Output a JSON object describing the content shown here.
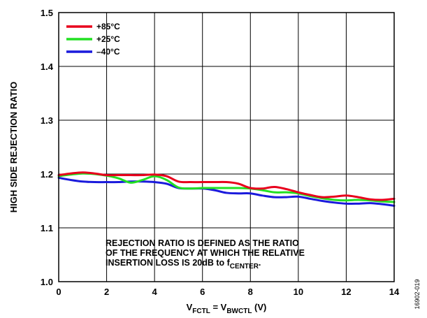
{
  "chart_data": {
    "type": "line",
    "xlabel": {
      "parts": [
        {
          "text": "V",
          "sub": false
        },
        {
          "text": "FCTL",
          "sub": true
        },
        {
          "text": " = V",
          "sub": false
        },
        {
          "text": "BWCTL",
          "sub": true
        },
        {
          "text": " (V)",
          "sub": false
        }
      ]
    },
    "ylabel": "HIGH SIDE REJECTION RATIO",
    "xlim": [
      0,
      14
    ],
    "ylim": [
      1.0,
      1.5
    ],
    "xticks": [
      0,
      2,
      4,
      6,
      8,
      10,
      12,
      14
    ],
    "yticks": [
      1.0,
      1.1,
      1.2,
      1.3,
      1.4,
      1.5
    ],
    "x_tick_labels": [
      "0",
      "2",
      "4",
      "6",
      "8",
      "10",
      "12",
      "14"
    ],
    "y_tick_labels": [
      "1.0",
      "1.1",
      "1.2",
      "1.3",
      "1.4",
      "1.5"
    ],
    "grid": true,
    "legend_position": "top-left",
    "series": [
      {
        "name": "+85°C",
        "color": "#e8001c",
        "x": [
          0,
          0.5,
          1,
          1.5,
          2,
          2.5,
          3,
          3.5,
          4,
          4.5,
          5,
          5.5,
          6,
          6.5,
          7,
          7.5,
          8,
          8.5,
          9,
          9.5,
          10,
          10.5,
          11,
          11.5,
          12,
          12.5,
          13,
          13.5,
          14
        ],
        "y": [
          1.198,
          1.201,
          1.203,
          1.201,
          1.198,
          1.198,
          1.198,
          1.198,
          1.199,
          1.196,
          1.186,
          1.185,
          1.185,
          1.185,
          1.185,
          1.182,
          1.174,
          1.173,
          1.176,
          1.172,
          1.166,
          1.161,
          1.157,
          1.158,
          1.16,
          1.157,
          1.153,
          1.152,
          1.154
        ]
      },
      {
        "name": "+25°C",
        "color": "#22e022",
        "x": [
          0,
          0.5,
          1,
          1.5,
          2,
          2.5,
          3,
          3.5,
          4,
          4.5,
          5,
          5.5,
          6,
          6.5,
          7,
          7.5,
          8,
          8.5,
          9,
          9.5,
          10,
          10.5,
          11,
          11.5,
          12,
          12.5,
          13,
          13.5,
          14
        ],
        "y": [
          1.196,
          1.199,
          1.201,
          1.2,
          1.197,
          1.192,
          1.184,
          1.189,
          1.196,
          1.189,
          1.175,
          1.173,
          1.174,
          1.174,
          1.174,
          1.174,
          1.173,
          1.17,
          1.166,
          1.166,
          1.164,
          1.159,
          1.155,
          1.152,
          1.151,
          1.152,
          1.151,
          1.149,
          1.148
        ]
      },
      {
        "name": "–40°C",
        "color": "#1a1adc",
        "x": [
          0,
          0.5,
          1,
          1.5,
          2,
          2.5,
          3,
          3.5,
          4,
          4.5,
          5,
          5.5,
          6,
          6.5,
          7,
          7.5,
          8,
          8.5,
          9,
          9.5,
          10,
          10.5,
          11,
          11.5,
          12,
          12.5,
          13,
          13.5,
          14
        ],
        "y": [
          1.193,
          1.189,
          1.186,
          1.185,
          1.185,
          1.185,
          1.186,
          1.186,
          1.185,
          1.182,
          1.174,
          1.173,
          1.173,
          1.17,
          1.165,
          1.164,
          1.164,
          1.16,
          1.157,
          1.157,
          1.158,
          1.154,
          1.15,
          1.147,
          1.145,
          1.145,
          1.146,
          1.144,
          1.141
        ]
      }
    ],
    "annotation": {
      "lines": [
        [
          {
            "text": "REJECTION RATIO IS DEFINED AS THE RATIO",
            "sub": false
          }
        ],
        [
          {
            "text": "OF THE FREQUENCY AT WHICH THE RELATIVE",
            "sub": false
          }
        ],
        [
          {
            "text": "INSERTION LOSS IS 20dB to f",
            "sub": false
          },
          {
            "text": "CENTER",
            "sub": true
          },
          {
            "text": ".",
            "sub": false
          }
        ]
      ]
    },
    "figure_id": "16902-019"
  }
}
